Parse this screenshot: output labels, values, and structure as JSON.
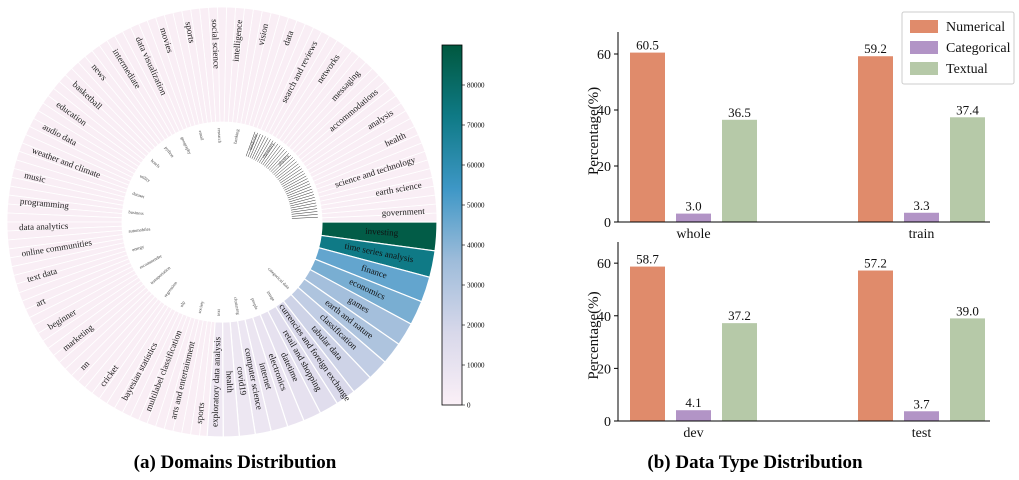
{
  "captions": {
    "left": "(a) Domains Distribution",
    "right": "(b) Data Type Distribution"
  },
  "chart_data": [
    {
      "type": "pie",
      "variant": "half-polar-bar (sunburst-like), upper semicircle of labels, lower semicircle of colored domain wedges",
      "colorbar": {
        "ticks": [
          "0",
          "10000",
          "20000",
          "30000",
          "40000",
          "50000",
          "60000",
          "70000",
          "80000"
        ],
        "range": [
          0,
          90000
        ],
        "colors": [
          "#fbf0f7",
          "#d8d8ea",
          "#9ebcda",
          "#3e97c6",
          "#0f7a86",
          "#00583f"
        ]
      },
      "outer_labels": [
        "investing",
        "time series analysis",
        "finance",
        "economics",
        "games",
        "earth and nature",
        "classification",
        "tabular data",
        "currencies and foreign exchange",
        "retail and shopping",
        "datetime",
        "electronics",
        "internet",
        "computer science",
        "covid19",
        "health",
        "exploratory data analysis",
        "sports",
        "arts and entertainment",
        "multilabel classification",
        "bayesian statistics",
        "cricket",
        "nn",
        "marketing",
        "beginner",
        "art",
        "text data",
        "online communities",
        "data analytics",
        "programming",
        "music",
        "weather and climate",
        "audio data",
        "education",
        "basketball",
        "news",
        "intermediate",
        "data visualization",
        "movies",
        "sports",
        "social science",
        "intelligence",
        "vision",
        "data",
        "search and reviews",
        "networks",
        "messaging",
        "accommodations",
        "analysis",
        "health",
        "science and technology",
        "earth science",
        "government"
      ],
      "inner_labels": [
        "categorical data",
        "image",
        "people",
        "clustering",
        "text",
        "society",
        "nlp",
        "regression",
        "transportation",
        "recommender",
        "energy",
        "automobiles",
        "business",
        "dataset",
        "utility",
        "hotels",
        "python",
        "geography",
        "email",
        "research",
        "banking",
        "medicine",
        "chemistry",
        "physics"
      ],
      "wedge_values": [
        {
          "name": "investing",
          "value": 88000
        },
        {
          "name": "time series analysis",
          "value": 72000
        },
        {
          "name": "finance",
          "value": 47000
        },
        {
          "name": "economics",
          "value": 43000
        },
        {
          "name": "games",
          "value": 34000
        },
        {
          "name": "earth and nature",
          "value": 31000
        },
        {
          "name": "classification",
          "value": 25000
        },
        {
          "name": "tabular data",
          "value": 21000
        },
        {
          "name": "currencies and foreign exchange",
          "value": 17000
        },
        {
          "name": "retail and shopping",
          "value": 14000
        },
        {
          "name": "datetime",
          "value": 11000
        },
        {
          "name": "electronics",
          "value": 9000
        },
        {
          "name": "internet",
          "value": 8000
        },
        {
          "name": "computer science",
          "value": 7500
        },
        {
          "name": "covid19",
          "value": 7000
        },
        {
          "name": "health",
          "value": 6500
        },
        {
          "name": "exploratory data analysis",
          "value": 6000
        }
      ]
    },
    {
      "type": "bar",
      "subplots": [
        {
          "category": "whole",
          "values": [
            60.5,
            3.0,
            36.5
          ],
          "labels": [
            "60.5",
            "3.0",
            "36.5"
          ]
        },
        {
          "category": "train",
          "values": [
            59.2,
            3.3,
            37.4
          ],
          "labels": [
            "59.2",
            "3.3",
            "37.4"
          ]
        },
        {
          "category": "dev",
          "values": [
            58.7,
            4.1,
            37.2
          ],
          "labels": [
            "58.7",
            "4.1",
            "37.2"
          ]
        },
        {
          "category": "test",
          "values": [
            57.2,
            3.7,
            39.0
          ],
          "labels": [
            "57.2",
            "3.7",
            "39.0"
          ]
        }
      ],
      "series": [
        {
          "name": "Numerical",
          "color": "#e08b6b"
        },
        {
          "name": "Categorical",
          "color": "#b294c6"
        },
        {
          "name": "Textual",
          "color": "#b6c9a8"
        }
      ],
      "ylabel": "Percentage(%)",
      "ylim": [
        0,
        65
      ],
      "yticks": [
        "0",
        "20",
        "40",
        "60"
      ],
      "legend_position": "top-right",
      "grid": false
    }
  ]
}
